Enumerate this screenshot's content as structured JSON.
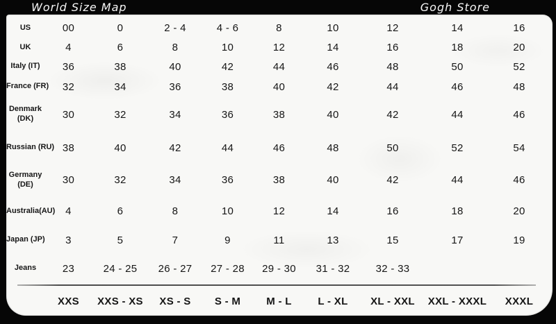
{
  "header": {
    "left_title": "World Size Map",
    "right_title": "Gogh Store"
  },
  "colors": {
    "background": "#060606",
    "paper": "#f8f8f6",
    "text": "#161616",
    "header_text": "#f5f5f5"
  },
  "table": {
    "rows": [
      {
        "label": "US",
        "values": [
          "00",
          "0",
          "2 - 4",
          "4 - 6",
          "8",
          "10",
          "12",
          "14",
          "16"
        ]
      },
      {
        "label": "UK",
        "values": [
          "4",
          "6",
          "8",
          "10",
          "12",
          "14",
          "16",
          "18",
          "20"
        ]
      },
      {
        "label": "Italy (IT)",
        "values": [
          "36",
          "38",
          "40",
          "42",
          "44",
          "46",
          "48",
          "50",
          "52"
        ]
      },
      {
        "label": "France (FR)",
        "values": [
          "32",
          "34",
          "36",
          "38",
          "40",
          "42",
          "44",
          "46",
          "48"
        ]
      },
      {
        "label": "Denmark (DK)",
        "values": [
          "30",
          "32",
          "34",
          "36",
          "38",
          "40",
          "42",
          "44",
          "46"
        ]
      },
      {
        "label": "Russian (RU)",
        "values": [
          "38",
          "40",
          "42",
          "44",
          "46",
          "48",
          "50",
          "52",
          "54"
        ]
      },
      {
        "label": "Germany (DE)",
        "values": [
          "30",
          "32",
          "34",
          "36",
          "38",
          "40",
          "42",
          "44",
          "46"
        ]
      },
      {
        "label": "Australia(AU)",
        "values": [
          "4",
          "6",
          "8",
          "10",
          "12",
          "14",
          "16",
          "18",
          "20"
        ]
      },
      {
        "label": "Japan (JP)",
        "values": [
          "3",
          "5",
          "7",
          "9",
          "11",
          "13",
          "15",
          "17",
          "19"
        ]
      },
      {
        "label": "Jeans",
        "values": [
          "23",
          "24 - 25",
          "26 - 27",
          "27 - 28",
          "29 - 30",
          "31 - 32",
          "32 - 33",
          "",
          ""
        ]
      }
    ],
    "footer": [
      "XXS",
      "XXS - XS",
      "XS - S",
      "S - M",
      "M - L",
      "L - XL",
      "XL - XXL",
      "XXL - XXXL",
      "XXXL"
    ]
  }
}
